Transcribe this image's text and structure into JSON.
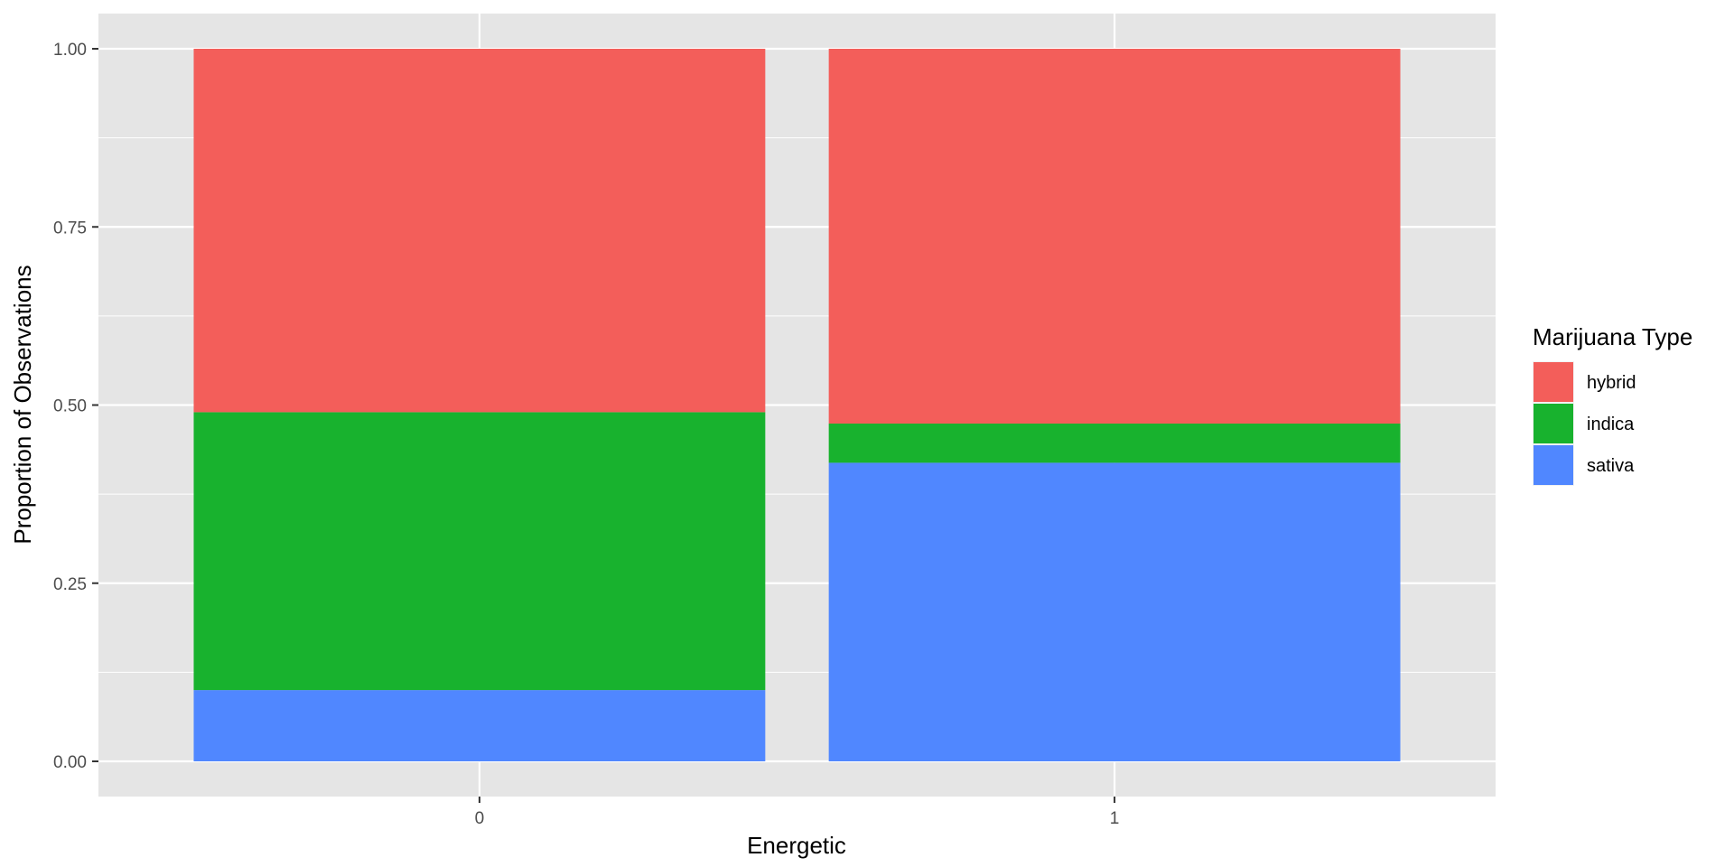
{
  "chart_data": {
    "type": "bar",
    "stacked": true,
    "categories": [
      "0",
      "1"
    ],
    "series": [
      {
        "name": "hybrid",
        "color": "#F35E5A",
        "values": [
          0.51,
          0.526
        ]
      },
      {
        "name": "indica",
        "color": "#18B22E",
        "values": [
          0.39,
          0.055
        ]
      },
      {
        "name": "sativa",
        "color": "#5087FF",
        "values": [
          0.1,
          0.419
        ]
      }
    ],
    "xlabel": "Energetic",
    "ylabel": "Proportion of Observations",
    "ylim": [
      0,
      1
    ],
    "yticks": [
      "0.00",
      "0.25",
      "0.50",
      "0.75",
      "1.00"
    ],
    "legend": {
      "title": "Marijuana Type",
      "position": "right"
    },
    "grid": true,
    "panel_background": "#E5E5E5",
    "grid_color": "#FFFFFF"
  }
}
